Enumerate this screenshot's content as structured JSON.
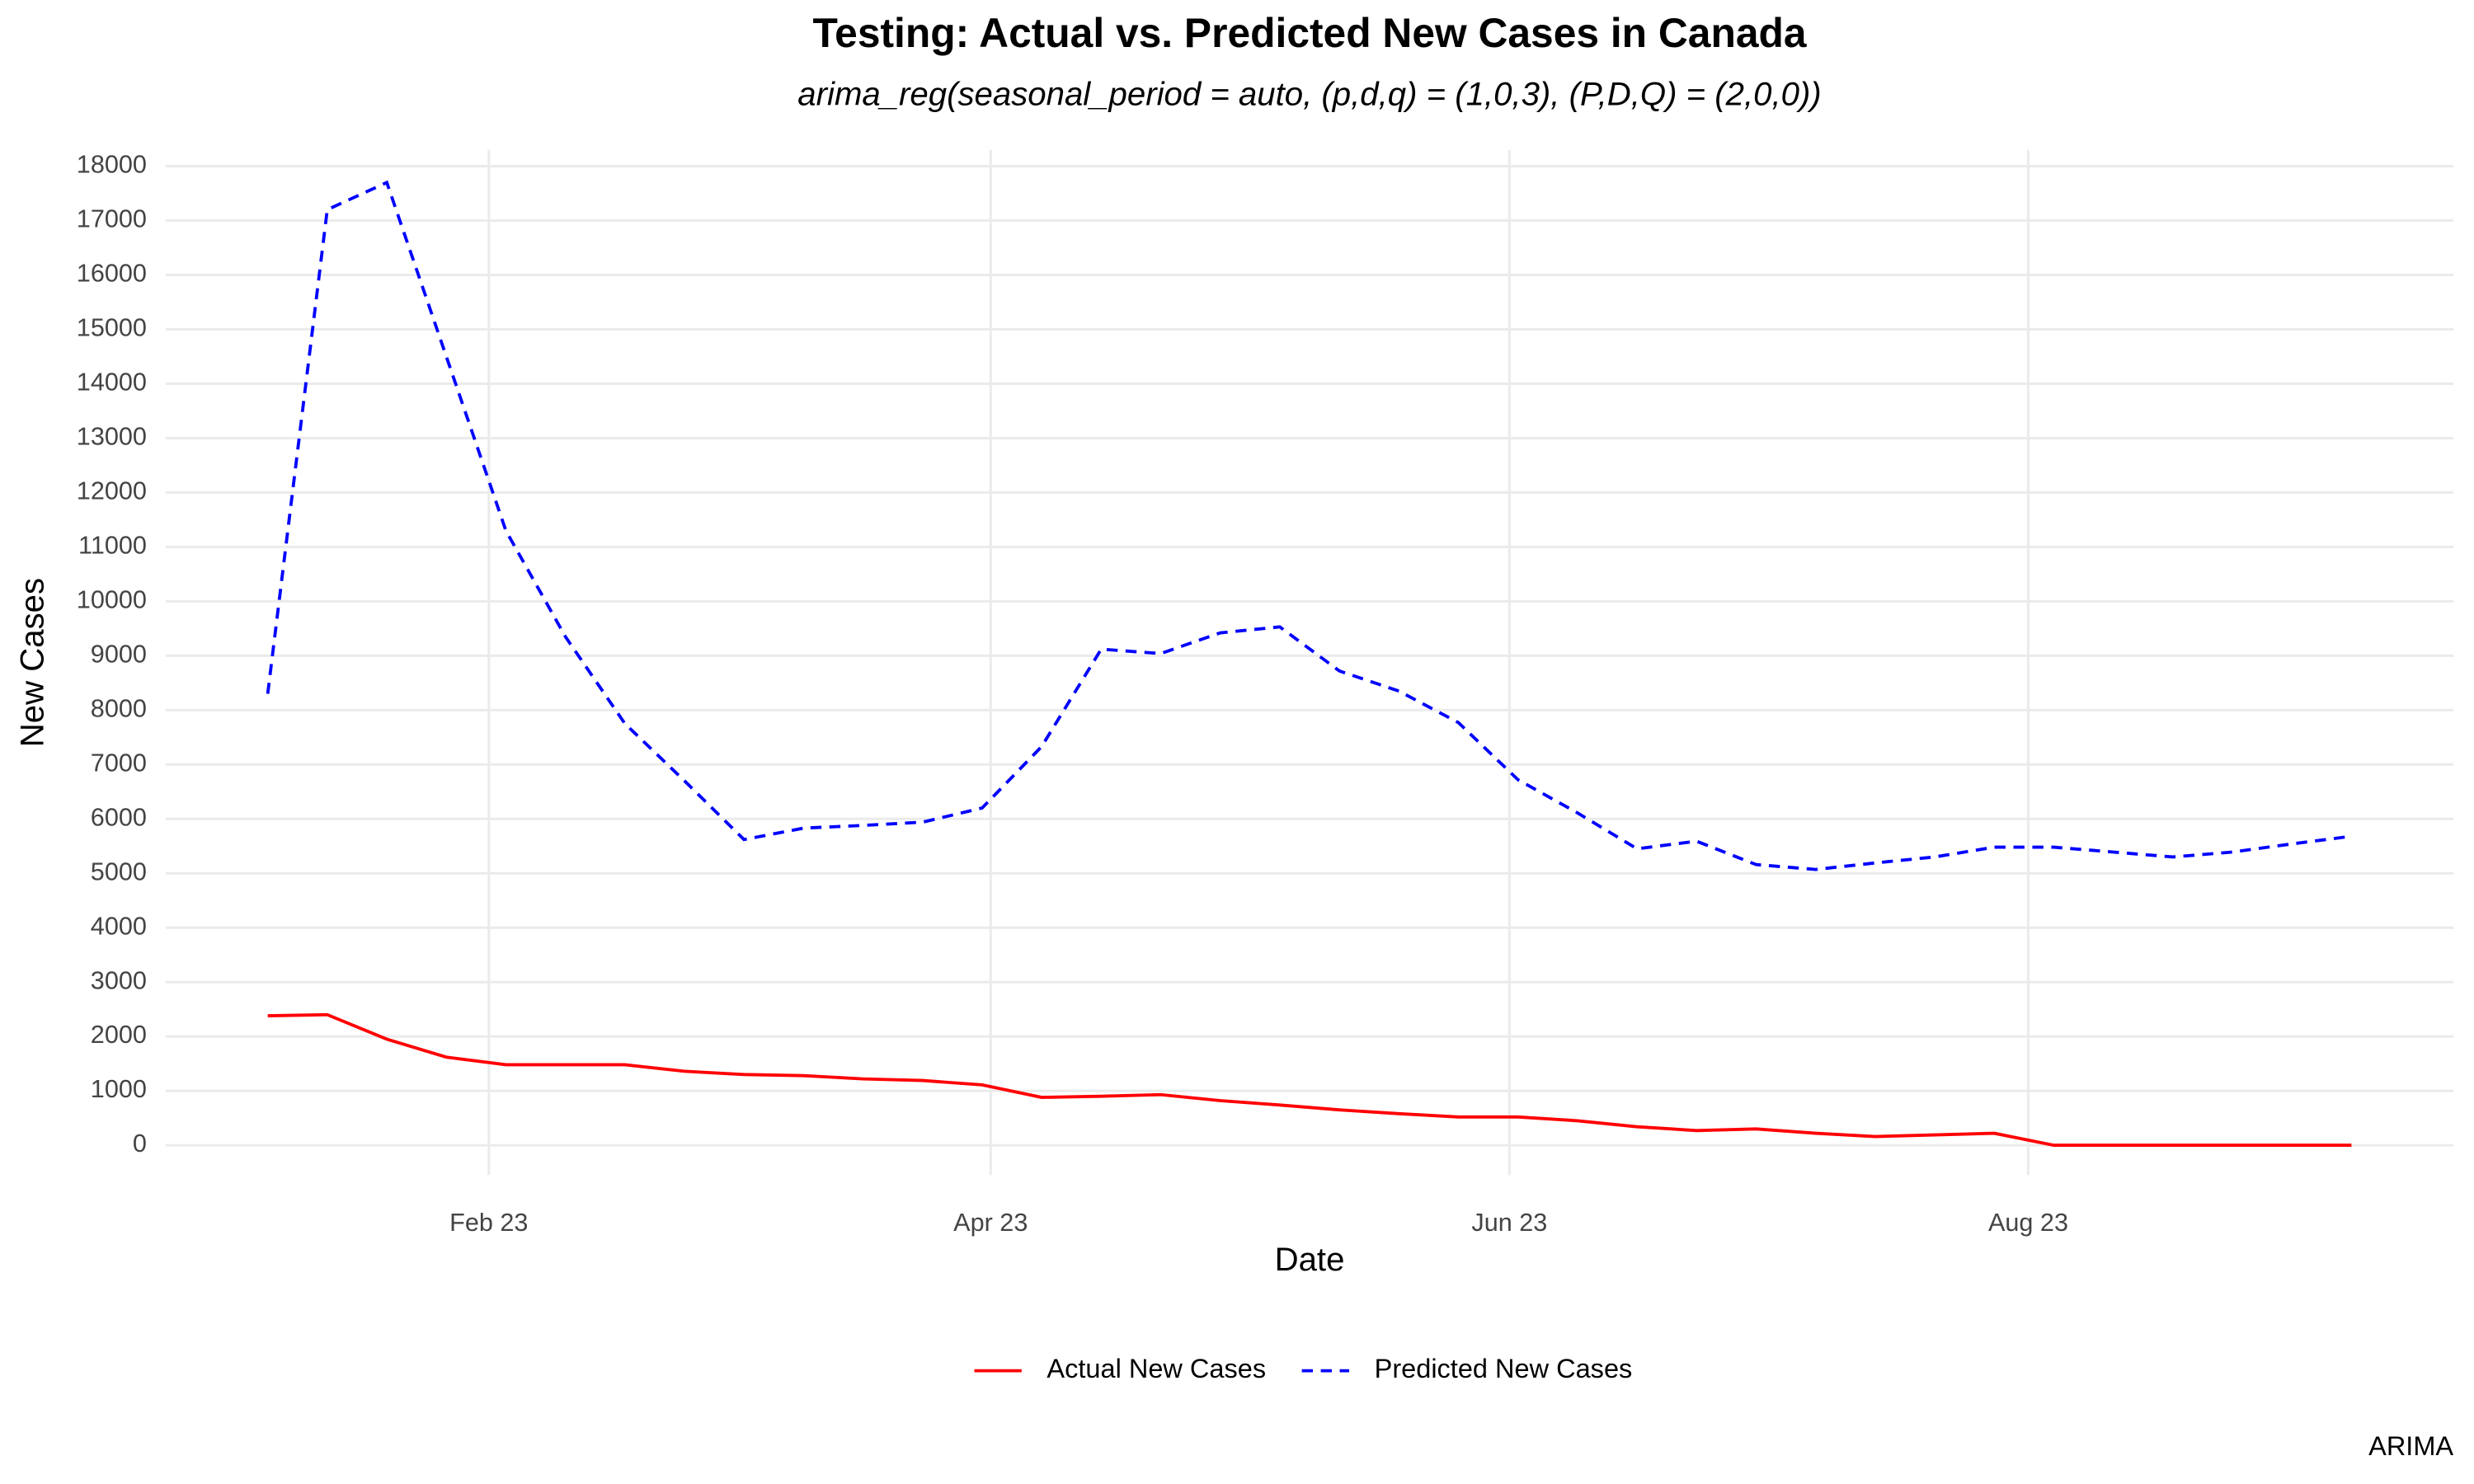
{
  "chart_data": {
    "type": "line",
    "title": "Testing: Actual vs. Predicted New Cases in Canada",
    "subtitle": "arima_reg(seasonal_period = auto, (p,d,q) = (1,0,3), (P,D,Q) = (2,0,0))",
    "x_label": "Date",
    "y_label": "New Cases",
    "caption": "ARIMA",
    "x": [
      "2023-01-06",
      "2023-01-13",
      "2023-01-20",
      "2023-01-27",
      "2023-02-03",
      "2023-02-10",
      "2023-02-17",
      "2023-02-24",
      "2023-03-03",
      "2023-03-10",
      "2023-03-17",
      "2023-03-24",
      "2023-03-31",
      "2023-04-07",
      "2023-04-14",
      "2023-04-21",
      "2023-04-28",
      "2023-05-05",
      "2023-05-12",
      "2023-05-19",
      "2023-05-26",
      "2023-06-02",
      "2023-06-09",
      "2023-06-16",
      "2023-06-23",
      "2023-06-30",
      "2023-07-07",
      "2023-07-14",
      "2023-07-21",
      "2023-07-28",
      "2023-08-04",
      "2023-08-11",
      "2023-08-18",
      "2023-08-25",
      "2023-09-01",
      "2023-09-08"
    ],
    "series": [
      {
        "name": "Actual New Cases",
        "color": "#ff0000",
        "dash": "solid",
        "values": [
          2380,
          2400,
          1950,
          1620,
          1480,
          1480,
          1480,
          1360,
          1300,
          1280,
          1220,
          1190,
          1110,
          880,
          900,
          930,
          820,
          740,
          650,
          580,
          520,
          520,
          450,
          340,
          270,
          300,
          220,
          160,
          190,
          220,
          0,
          0,
          0,
          0,
          0,
          0
        ]
      },
      {
        "name": "Predicted New Cases",
        "color": "#0000ff",
        "dash": "dashed",
        "values": [
          8300,
          17200,
          17700,
          14500,
          11300,
          9350,
          7750,
          6700,
          5620,
          5830,
          5880,
          5940,
          6200,
          7330,
          9120,
          9040,
          9420,
          9530,
          8720,
          8350,
          7770,
          6720,
          6110,
          5450,
          5590,
          5160,
          5070,
          5190,
          5300,
          5480,
          5480,
          5390,
          5300,
          5390,
          5540,
          5680
        ]
      }
    ],
    "xlim": [
      "2022-12-25",
      "2023-09-20"
    ],
    "xticks": [
      {
        "value": "2023-02-01",
        "label": "Feb 23"
      },
      {
        "value": "2023-04-01",
        "label": "Apr 23"
      },
      {
        "value": "2023-06-01",
        "label": "Jun 23"
      },
      {
        "value": "2023-08-01",
        "label": "Aug 23"
      }
    ],
    "ylim": [
      -550,
      18300
    ],
    "yticks": [
      0,
      1000,
      2000,
      3000,
      4000,
      5000,
      6000,
      7000,
      8000,
      9000,
      10000,
      11000,
      12000,
      13000,
      14000,
      15000,
      16000,
      17000,
      18000
    ],
    "grid": true,
    "legend_position": "bottom"
  }
}
